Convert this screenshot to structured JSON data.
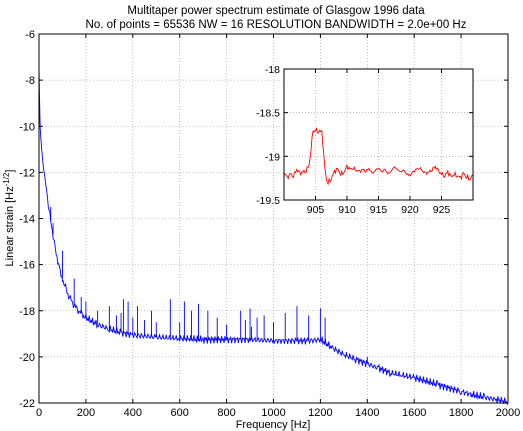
{
  "chart_data": [
    {
      "type": "line",
      "title": "Multitaper power spectrum estimate of Glasgow 1996 data",
      "subtitle": "No. of points = 65536 NW = 16  RESOLUTION BANDWIDTH = 2.0e+00 Hz",
      "xlabel": "Frequency [Hz]",
      "ylabel_main": "Linear strain [Hz",
      "ylabel_sup": "-1/2",
      "ylabel_end": "]",
      "xlim": [
        0,
        2000
      ],
      "ylim": [
        -22,
        -6
      ],
      "xticks": [
        0,
        200,
        400,
        600,
        800,
        1000,
        1200,
        1400,
        1600,
        1800,
        2000
      ],
      "yticks": [
        -22,
        -20,
        -18,
        -16,
        -14,
        -12,
        -10,
        -8,
        -6
      ],
      "grid": true,
      "color": "#0000ff",
      "series": [
        {
          "x": [
            0,
            2,
            5,
            8,
            12,
            16,
            20,
            25,
            30,
            40,
            50,
            60,
            70,
            80,
            90,
            100,
            120,
            140,
            160,
            180,
            200,
            250,
            300,
            350,
            400,
            500,
            600,
            700,
            800,
            900,
            1000,
            1100,
            1150,
            1200,
            1250,
            1300,
            1350,
            1400,
            1450,
            1500,
            1550,
            1600,
            1700,
            1800,
            1850,
            1900,
            1950,
            2000
          ],
          "y": [
            -7.4,
            -8.8,
            -10.0,
            -10.6,
            -11.0,
            -11.4,
            -11.8,
            -12.2,
            -12.6,
            -13.4,
            -14.1,
            -14.7,
            -15.3,
            -15.8,
            -16.2,
            -16.6,
            -17.2,
            -17.6,
            -17.9,
            -18.1,
            -18.3,
            -18.6,
            -18.8,
            -18.95,
            -19.05,
            -19.15,
            -19.2,
            -19.25,
            -19.25,
            -19.25,
            -19.3,
            -19.3,
            -19.3,
            -19.25,
            -19.6,
            -19.9,
            -20.1,
            -20.3,
            -20.5,
            -20.7,
            -20.8,
            -20.9,
            -21.2,
            -21.5,
            -21.65,
            -21.75,
            -21.85,
            -21.95
          ]
        }
      ],
      "spikes": [
        {
          "x": 50,
          "y": -13.5
        },
        {
          "x": 60,
          "y": -14.2
        },
        {
          "x": 100,
          "y": -15.4
        },
        {
          "x": 150,
          "y": -16.6
        },
        {
          "x": 180,
          "y": -17.4
        },
        {
          "x": 200,
          "y": -17.6
        },
        {
          "x": 250,
          "y": -18.0
        },
        {
          "x": 300,
          "y": -17.8
        },
        {
          "x": 330,
          "y": -18.2
        },
        {
          "x": 350,
          "y": -18.1
        },
        {
          "x": 360,
          "y": -17.5
        },
        {
          "x": 380,
          "y": -17.6
        },
        {
          "x": 400,
          "y": -18.3
        },
        {
          "x": 420,
          "y": -17.8
        },
        {
          "x": 450,
          "y": -18.4
        },
        {
          "x": 480,
          "y": -18.0
        },
        {
          "x": 500,
          "y": -18.5
        },
        {
          "x": 560,
          "y": -17.5
        },
        {
          "x": 600,
          "y": -18.5
        },
        {
          "x": 620,
          "y": -17.6
        },
        {
          "x": 650,
          "y": -18.0
        },
        {
          "x": 680,
          "y": -17.7
        },
        {
          "x": 720,
          "y": -18.0
        },
        {
          "x": 760,
          "y": -18.3
        },
        {
          "x": 800,
          "y": -18.6
        },
        {
          "x": 860,
          "y": -18.0
        },
        {
          "x": 880,
          "y": -18.4
        },
        {
          "x": 900,
          "y": -17.9
        },
        {
          "x": 906,
          "y": -18.7
        },
        {
          "x": 930,
          "y": -18.3
        },
        {
          "x": 960,
          "y": -18.2
        },
        {
          "x": 1000,
          "y": -18.5
        },
        {
          "x": 1050,
          "y": -18.1
        },
        {
          "x": 1100,
          "y": -17.8
        },
        {
          "x": 1150,
          "y": -18.2
        },
        {
          "x": 1200,
          "y": -17.9
        },
        {
          "x": 1220,
          "y": -18.3
        },
        {
          "x": 1400,
          "y": -20.0
        }
      ]
    },
    {
      "type": "line",
      "xlim": [
        900,
        930
      ],
      "ylim": [
        -19.5,
        -18
      ],
      "xticks": [
        905,
        910,
        915,
        920,
        925
      ],
      "yticks": [
        -19.5,
        -19,
        -18.5,
        -18
      ],
      "ytick_labels": [
        "-19.5",
        "-19",
        "-18.5",
        "-18"
      ],
      "grid": true,
      "color": "#ff0000",
      "series": [
        {
          "x": [
            900,
            900.5,
            901,
            901.5,
            902,
            902.5,
            903,
            903.5,
            904,
            904.3,
            904.6,
            905,
            905.5,
            906,
            906.3,
            906.5,
            906.8,
            907,
            907.5,
            908,
            908.5,
            909,
            909.5,
            910,
            910.5,
            911,
            911.5,
            912,
            912.5,
            913,
            913.5,
            914,
            914.5,
            915,
            915.5,
            916,
            916.5,
            917,
            917.5,
            918,
            918.5,
            919,
            919.5,
            920,
            920.5,
            921,
            921.5,
            922,
            922.5,
            923,
            923.5,
            924,
            924.5,
            925,
            925.5,
            926,
            926.5,
            927,
            927.5,
            928,
            928.5,
            929,
            929.5,
            930
          ],
          "y": [
            -19.18,
            -19.25,
            -19.2,
            -19.22,
            -19.15,
            -19.2,
            -19.18,
            -19.16,
            -19.1,
            -18.9,
            -18.72,
            -18.7,
            -18.71,
            -18.72,
            -18.95,
            -19.15,
            -19.28,
            -19.3,
            -19.25,
            -19.18,
            -19.15,
            -19.2,
            -19.18,
            -19.12,
            -19.15,
            -19.13,
            -19.16,
            -19.18,
            -19.15,
            -19.17,
            -19.14,
            -19.2,
            -19.16,
            -19.13,
            -19.18,
            -19.15,
            -19.2,
            -19.17,
            -19.12,
            -19.15,
            -19.18,
            -19.16,
            -19.2,
            -19.22,
            -19.18,
            -19.15,
            -19.13,
            -19.17,
            -19.2,
            -19.18,
            -19.15,
            -19.12,
            -19.17,
            -19.2,
            -19.22,
            -19.18,
            -19.24,
            -19.2,
            -19.22,
            -19.25,
            -19.2,
            -19.23,
            -19.26,
            -19.22
          ]
        }
      ]
    }
  ]
}
